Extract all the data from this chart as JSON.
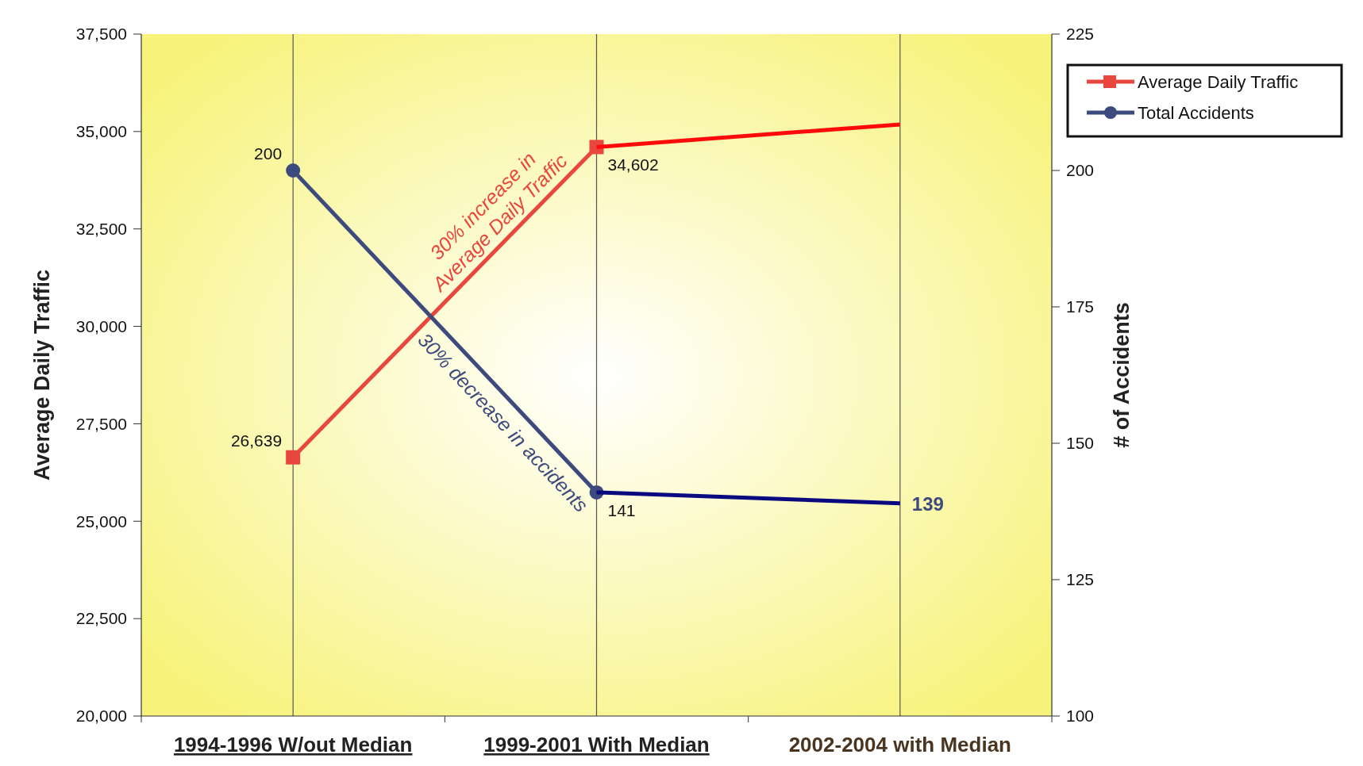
{
  "chart_data": {
    "type": "line",
    "ylabel": "Average Daily Traffic",
    "y2label": "# of Accidents",
    "categories": [
      "1994-1996 W/out Median",
      "1999-2001 With Median",
      "2002-2004 with Median"
    ],
    "series": [
      {
        "name": "Average Daily Traffic",
        "color": "#e8473d",
        "marker": "square",
        "values": [
          26639,
          34602,
          null
        ],
        "value_labels": [
          "26,639",
          "34,602",
          null
        ]
      },
      {
        "name": "Total Accidents",
        "color": "#3d4a7e",
        "marker": "circle",
        "axis": "y2",
        "values": [
          200,
          141,
          null
        ],
        "value_labels": [
          "200",
          "141",
          null
        ]
      },
      {
        "type": "line",
        "color": "#ff0a0a",
        "marker": "none",
        "x": [
          "1999-2001 With Median",
          "2002-2004 with Median"
        ],
        "values": [
          34602,
          35180
        ],
        "value_labels": [
          null,
          null
        ]
      },
      {
        "type": "line",
        "color": "#0a0a80",
        "marker": "none",
        "axis": "y2",
        "x": [
          "1999-2001 With Median",
          "2002-2004 with Median"
        ],
        "values": [
          141,
          139
        ],
        "value_labels": [
          null,
          "139"
        ]
      }
    ],
    "ylim": [
      20000,
      37500
    ],
    "yticks": [
      {
        "value": 20000,
        "label": "20,000"
      },
      {
        "value": 22500,
        "label": "22,500"
      },
      {
        "value": 25000,
        "label": "25,000"
      },
      {
        "value": 27500,
        "label": "27,500"
      },
      {
        "value": 30000,
        "label": "30,000"
      },
      {
        "value": 32500,
        "label": "32,500"
      },
      {
        "value": 35000,
        "label": "35,000"
      },
      {
        "value": 37500,
        "label": "37,500"
      }
    ],
    "y2lim": [
      100,
      225
    ],
    "y2ticks": [
      100,
      125,
      150,
      175,
      200,
      225
    ],
    "grid": "x",
    "legend": "top right",
    "annotations": [
      "30% increase in\nAverage Daily Traffic",
      "30% decrease in accidents"
    ]
  }
}
